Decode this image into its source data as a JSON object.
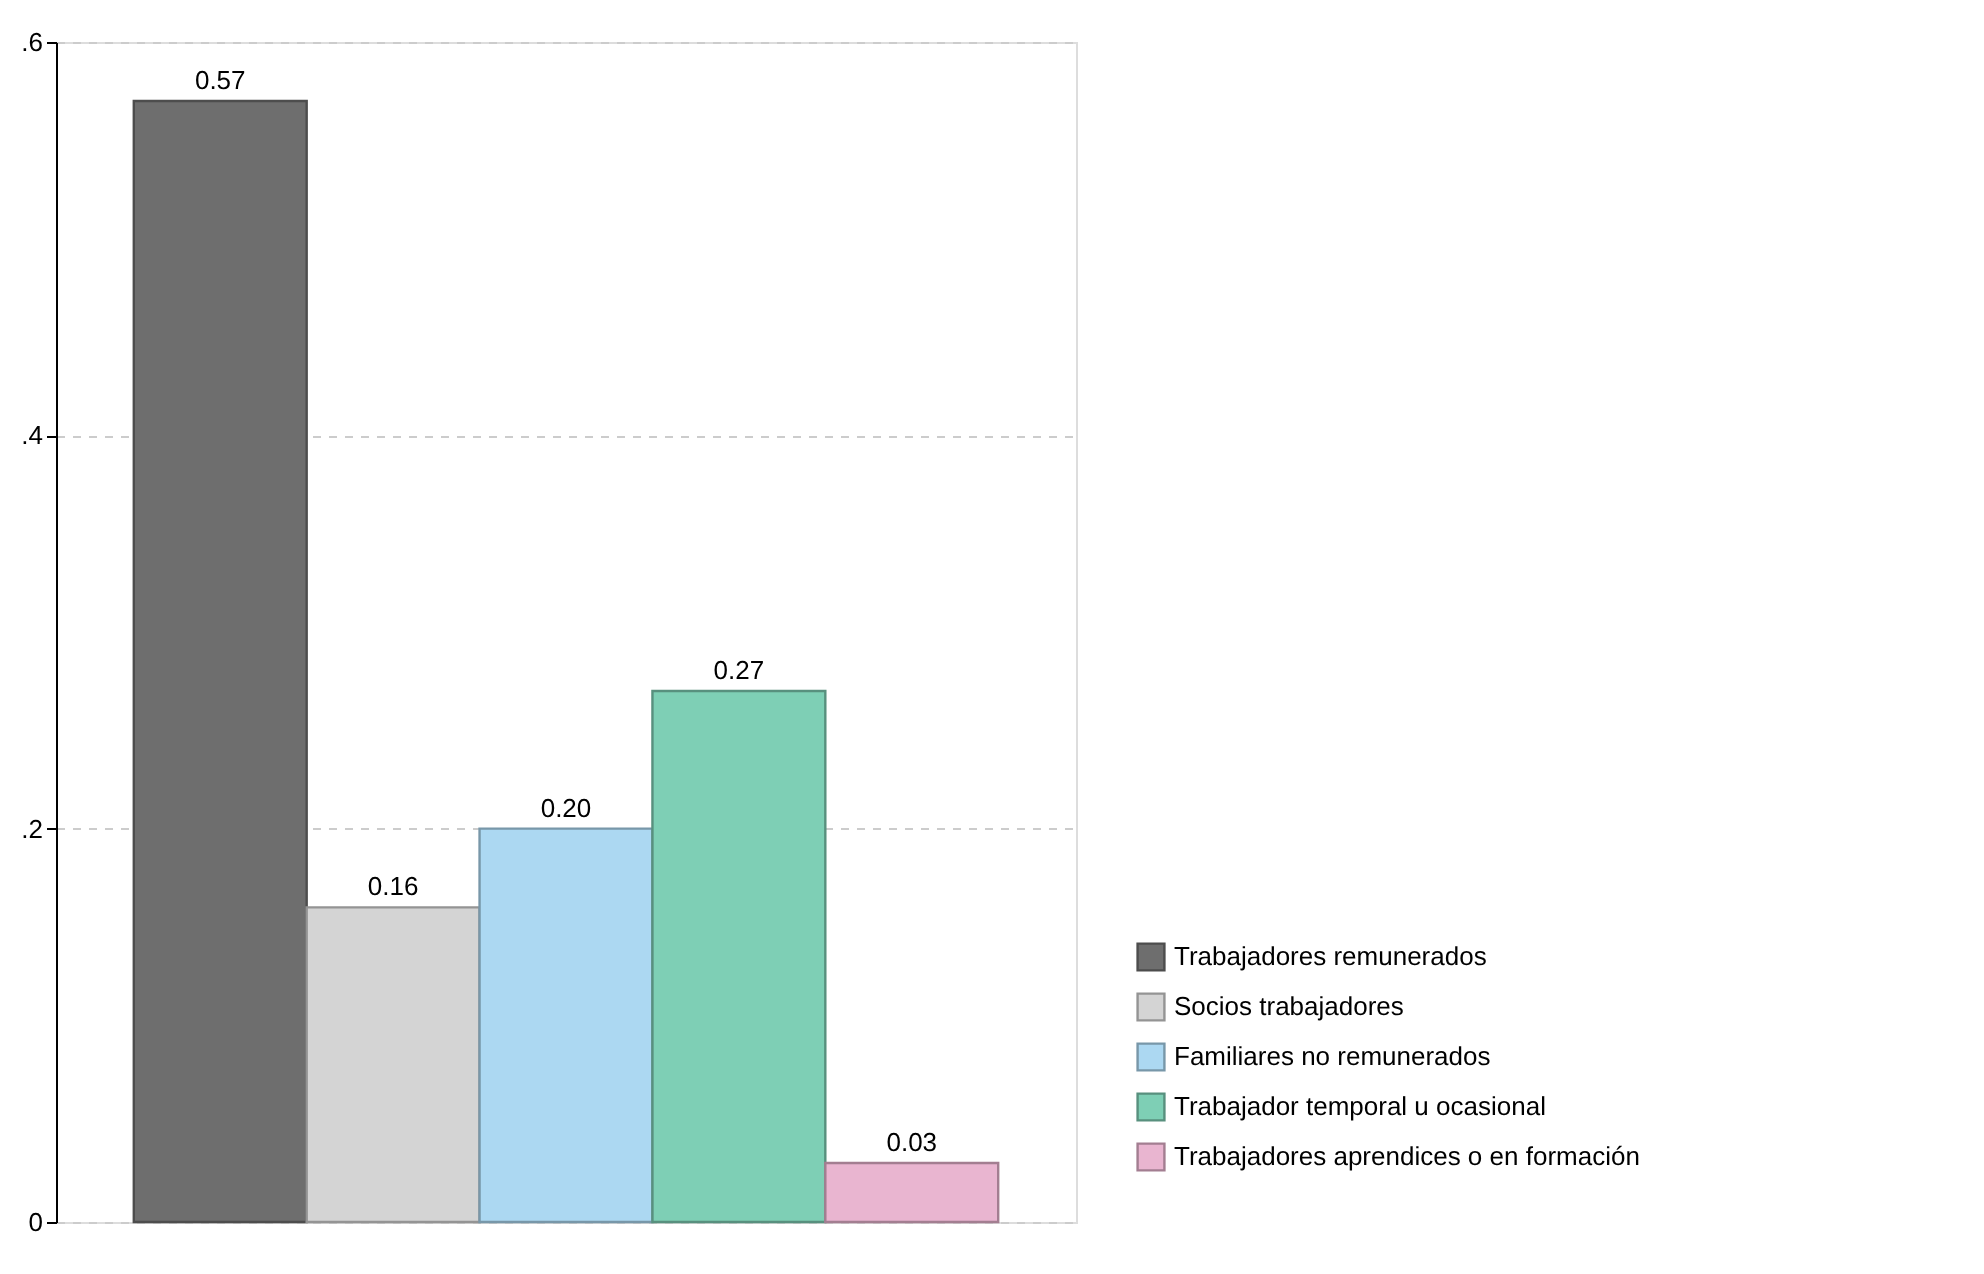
{
  "chart_data": {
    "type": "bar",
    "categories": [
      null
    ],
    "series": [
      {
        "name": "Trabajadores remunerados",
        "color": "#6e6e6e",
        "values": [
          0.57
        ],
        "value_labels": [
          "0.57"
        ]
      },
      {
        "name": "Socios trabajadores",
        "color": "#d4d4d4",
        "values": [
          0.16
        ],
        "value_labels": [
          "0.16"
        ]
      },
      {
        "name": "Familiares no remunerados",
        "color": "#acd8f2",
        "values": [
          0.2
        ],
        "value_labels": [
          "0.20"
        ]
      },
      {
        "name": "Trabajador temporal u ocasional",
        "color": "#7ecfb5",
        "values": [
          0.27
        ],
        "value_labels": [
          "0.27"
        ]
      },
      {
        "name": "Trabajadores aprendices o en formación",
        "color": "#e9b5d0",
        "values": [
          0.03
        ],
        "value_labels": [
          "0.03"
        ]
      }
    ],
    "ylim": [
      0,
      0.6
    ],
    "yticks": [
      {
        "value": 0,
        "label": "0"
      },
      {
        "value": 0.2,
        "label": ".2"
      },
      {
        "value": 0.4,
        "label": ".4"
      },
      {
        "value": 0.6,
        "label": ".6"
      }
    ],
    "grid": "y",
    "legend": "bottom right",
    "tick_labels": "y"
  }
}
